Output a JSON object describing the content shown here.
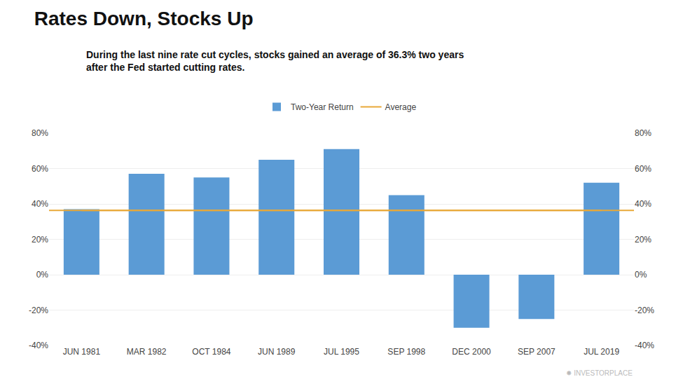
{
  "chart_data": {
    "type": "bar",
    "title": "Rates Down, Stocks Up",
    "subtitle": "During the last nine rate cut cycles, stocks gained an average of 36.3% two years\nafter the Fed started cutting rates.",
    "categories": [
      "JUN 1981",
      "MAR 1982",
      "OCT 1984",
      "JUN 1989",
      "JUL 1995",
      "SEP 1998",
      "DEC 2000",
      "SEP 2007",
      "JUL 2019"
    ],
    "series": [
      {
        "name": "Two-Year Return",
        "color": "#5B9BD5",
        "values": [
          37.0,
          57.0,
          55.0,
          65.0,
          71.0,
          45.0,
          -30.0,
          -25.0,
          52.0
        ]
      }
    ],
    "average": {
      "name": "Average",
      "value": 36.3,
      "color": "#E8A838"
    },
    "ylim": [
      -40,
      80
    ],
    "yticks": [
      {
        "value": -40,
        "label": "-40%"
      },
      {
        "value": -20,
        "label": "-20%"
      },
      {
        "value": 0,
        "label": "0%"
      },
      {
        "value": 20,
        "label": "20%"
      },
      {
        "value": 40,
        "label": "40%"
      },
      {
        "value": 60,
        "label": "60%"
      },
      {
        "value": 80,
        "label": "80%"
      }
    ],
    "y2lim": [
      -40,
      80
    ],
    "y2ticks": [
      {
        "value": -40,
        "label": "-40%"
      },
      {
        "value": -20,
        "label": "-20%"
      },
      {
        "value": 0,
        "label": "0%"
      },
      {
        "value": 20,
        "label": "20%"
      },
      {
        "value": 40,
        "label": "40%"
      },
      {
        "value": 60,
        "label": "60%"
      },
      {
        "value": 80,
        "label": "80%"
      }
    ],
    "grid": true,
    "legend": "top",
    "annotations": [
      {
        "text": "✸ INVESTORPLACE",
        "color": "#BBBBBB"
      }
    ]
  }
}
